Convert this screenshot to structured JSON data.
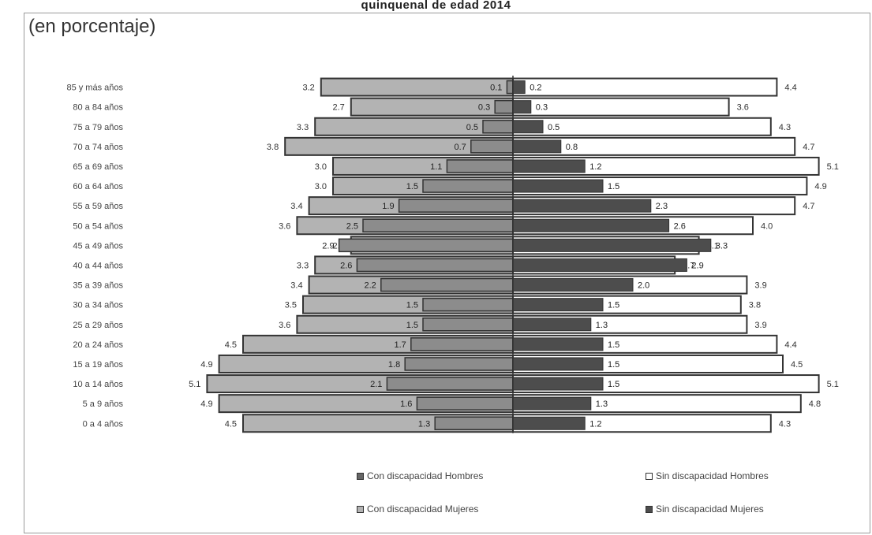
{
  "chart_data": {
    "type": "bar",
    "orientation": "horizontal-pyramid",
    "title": "quinquenal de edad 2014",
    "subtitle": "(en porcentaje)",
    "categories": [
      "0 a 4 años",
      "5 a 9 años",
      "10 a 14 años",
      "15 a 19 años",
      "20 a 24 años",
      "25 a 29 años",
      "30 a 34 años",
      "35 a 39 años",
      "40 a 44 años",
      "45 a 49 años",
      "50 a 54 años",
      "55 a 59 años",
      "60 a 64 años",
      "65 a 69 años",
      "70 a 74 años",
      "75 a 79 años",
      "80 a 84 años",
      "85 y más años"
    ],
    "series": [
      {
        "name": "Con discapacidad Hombres",
        "side": "left-inner",
        "values": [
          1.3,
          1.6,
          2.1,
          1.8,
          1.7,
          1.5,
          1.5,
          2.2,
          2.6,
          2.9,
          2.5,
          1.9,
          1.5,
          1.1,
          0.7,
          0.5,
          0.3,
          0.1
        ]
      },
      {
        "name": "Con discapacidad Mujeres",
        "side": "left-outer",
        "values": [
          4.5,
          4.9,
          5.1,
          4.9,
          4.5,
          3.6,
          3.5,
          3.4,
          3.3,
          2.7,
          3.6,
          3.4,
          3.0,
          3.0,
          3.8,
          3.3,
          2.7,
          3.2
        ]
      },
      {
        "name": "Sin discapacidad Hombres",
        "side": "right-inner",
        "values": [
          1.2,
          1.3,
          1.5,
          1.5,
          1.5,
          1.3,
          1.5,
          2.0,
          2.9,
          3.3,
          2.6,
          2.3,
          1.5,
          1.2,
          0.8,
          0.5,
          0.3,
          0.2
        ]
      },
      {
        "name": "Sin discapacidad Mujeres",
        "side": "right-outer",
        "values": [
          4.3,
          4.8,
          5.1,
          4.5,
          4.4,
          3.9,
          3.8,
          3.9,
          2.7,
          3.1,
          4.0,
          4.7,
          4.9,
          5.1,
          4.7,
          4.3,
          3.6,
          4.4
        ]
      }
    ],
    "xlim": [
      0,
      5.5
    ],
    "grid": false,
    "legend_position": "bottom"
  },
  "legend": {
    "con_hombres": "Con discapacidad Hombres",
    "con_mujeres": "Con discapacidad Mujeres",
    "sin_hombres": "Sin discapacidad Hombres",
    "sin_mujeres": "Sin discapacidad Mujeres"
  },
  "colors": {
    "con_outer": "#b3b3b3",
    "con_inner": "#8c8c8c",
    "sin_outer": "#ffffff",
    "sin_inner": "#4d4d4d",
    "outline": "#333333"
  }
}
